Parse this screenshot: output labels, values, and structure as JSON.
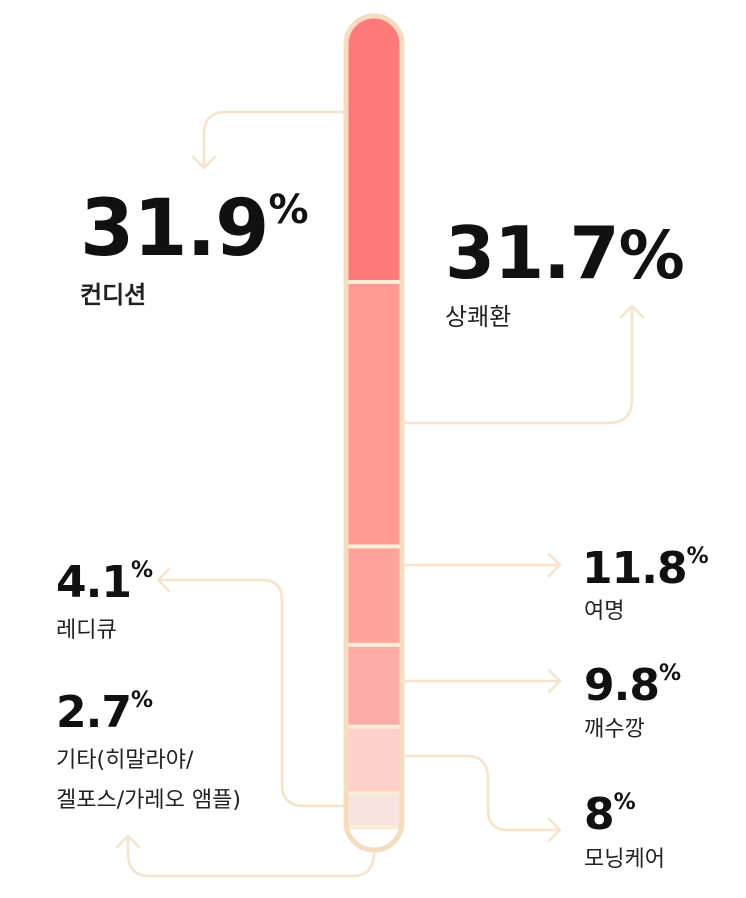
{
  "chart_data": {
    "type": "stacked-bar",
    "unit": "%",
    "segments": [
      {
        "name": "컨디션",
        "value": 31.9,
        "color": "#ff7b7b"
      },
      {
        "name": "상쾌환",
        "value": 31.7,
        "color": "#ff9b94"
      },
      {
        "name": "여명",
        "value": 11.8,
        "color": "#ffa49d"
      },
      {
        "name": "깨수깡",
        "value": 9.8,
        "color": "#ffaca6"
      },
      {
        "name": "모닝케어",
        "value": 8,
        "color": "#ffcfcb"
      },
      {
        "name": "레디큐",
        "value": 4.1,
        "color": "#f9e3e0"
      },
      {
        "name": "기타(히말라야/\n겔포스/가레오 앰플)",
        "value": 2.7,
        "color": "#ffffff"
      }
    ],
    "labels": [
      {
        "value": "31.9",
        "name": "컨디션"
      },
      {
        "value": "31.7",
        "name": "상쾌환"
      },
      {
        "value": "11.8",
        "name": "여명"
      },
      {
        "value": "9.8",
        "name": "깨수깡"
      },
      {
        "value": "8",
        "name": "모닝케어"
      },
      {
        "value": "4.1",
        "name": "레디큐"
      },
      {
        "value": "2.7",
        "name_line1": "기타(히말라야/",
        "name_line2": "겔포스/가레오 앰플)"
      }
    ],
    "outline_color": "#f3dcc0",
    "connector_color": "#f6e3cc",
    "divider_color": "#fbecd6"
  }
}
